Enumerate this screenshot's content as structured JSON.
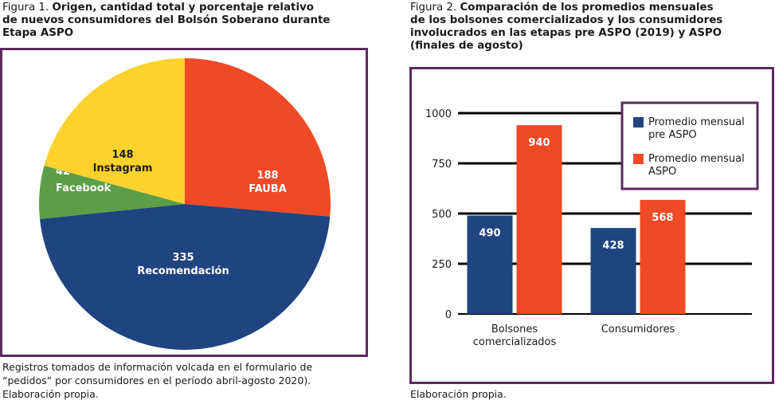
{
  "figure1": {
    "label": "Figura 1.",
    "title_line1": "Origen, cantidad total y porcentaje relativo",
    "title_line2": "de nuevos consumidores del Bolsón Soberano durante",
    "title_line3": "Etapa ASPO",
    "note_line1": "Registros tomados de información volcada en el formulario de",
    "note_line2": "“pedidos” por consumidores en el período abril-agosto 2020).",
    "note_line3": "Elaboración propia."
  },
  "figure2": {
    "label": "Figura 2.",
    "title_line1": "Comparación de los promedios mensuales",
    "title_line2": "de los bolsones comercializados y los consumidores",
    "title_line3": "involucrados en las etapas pre ASPO (2019) y ASPO",
    "title_line4": "(finales de agosto)",
    "note": "Elaboración propia."
  },
  "chart_data": [
    {
      "type": "pie",
      "slices": [
        {
          "label": "FAUBA",
          "value": 188,
          "color": "#ef4a25"
        },
        {
          "label": "Recomendación",
          "value": 335,
          "color": "#1f447f"
        },
        {
          "label": "Facebook",
          "value": 42,
          "color": "#5c9e48"
        },
        {
          "label": "Instagram",
          "value": 148,
          "color": "#fcd22d"
        }
      ]
    },
    {
      "type": "bar",
      "categories": [
        "Bolsones comercializados",
        "Consumidores"
      ],
      "series": [
        {
          "name": "Promedio mensual pre ASPO",
          "values": [
            490,
            428
          ],
          "color": "#1f447f"
        },
        {
          "name": "Promedio mensual ASPO",
          "values": [
            940,
            568
          ],
          "color": "#ef4a25"
        }
      ],
      "ylim": [
        0,
        1000
      ],
      "yticks": [
        0,
        250,
        500,
        750,
        1000
      ],
      "grid": true,
      "legend_position": "top-right"
    }
  ]
}
